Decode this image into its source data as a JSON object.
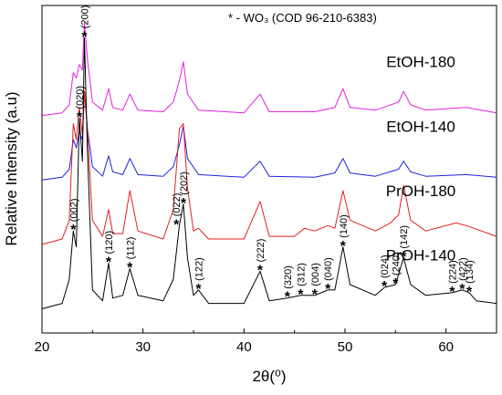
{
  "chart_data": {
    "type": "line",
    "title": "",
    "annotation": "* - WO₃ (COD 96-210-6383)",
    "xlabel": "2θ(⁰)",
    "ylabel": "Relative Intensity (a.u)",
    "xlim": [
      20,
      65
    ],
    "xticks": [
      20,
      30,
      40,
      50,
      60
    ],
    "y_tick_labels": "none",
    "grid": false,
    "legend": "none",
    "series": [
      {
        "name": "EtOH-180",
        "color": "#e020e0",
        "points": [
          [
            20,
            0.05
          ],
          [
            22.0,
            0.1
          ],
          [
            22.7,
            0.25
          ],
          [
            23.1,
            0.85
          ],
          [
            23.4,
            0.75
          ],
          [
            23.7,
            1.0
          ],
          [
            24.0,
            0.9
          ],
          [
            24.2,
            1.8
          ],
          [
            24.5,
            1.1
          ],
          [
            25.0,
            0.3
          ],
          [
            26.0,
            0.15
          ],
          [
            26.6,
            0.55
          ],
          [
            27.0,
            0.2
          ],
          [
            28.0,
            0.15
          ],
          [
            28.7,
            0.45
          ],
          [
            29.5,
            0.15
          ],
          [
            32.0,
            0.12
          ],
          [
            33.0,
            0.3
          ],
          [
            33.6,
            0.7
          ],
          [
            34.0,
            1.05
          ],
          [
            34.4,
            0.45
          ],
          [
            35.5,
            0.15
          ],
          [
            40.0,
            0.1
          ],
          [
            41.6,
            0.45
          ],
          [
            42.5,
            0.12
          ],
          [
            47.0,
            0.12
          ],
          [
            49.0,
            0.2
          ],
          [
            49.8,
            0.55
          ],
          [
            50.5,
            0.2
          ],
          [
            53.0,
            0.15
          ],
          [
            55.3,
            0.3
          ],
          [
            55.8,
            0.5
          ],
          [
            56.5,
            0.25
          ],
          [
            58.0,
            0.15
          ],
          [
            62.0,
            0.2
          ],
          [
            65,
            0.1
          ]
        ]
      },
      {
        "name": "EtOH-140",
        "color": "#2020e0",
        "points": [
          [
            20,
            0.05
          ],
          [
            22.0,
            0.1
          ],
          [
            22.7,
            0.25
          ],
          [
            23.1,
            0.8
          ],
          [
            23.4,
            0.65
          ],
          [
            23.7,
            0.95
          ],
          [
            24.0,
            0.8
          ],
          [
            24.2,
            1.7
          ],
          [
            24.5,
            1.0
          ],
          [
            25.0,
            0.3
          ],
          [
            26.0,
            0.12
          ],
          [
            26.6,
            0.5
          ],
          [
            27.0,
            0.2
          ],
          [
            28.0,
            0.15
          ],
          [
            28.7,
            0.45
          ],
          [
            29.5,
            0.15
          ],
          [
            32.0,
            0.12
          ],
          [
            33.0,
            0.3
          ],
          [
            33.6,
            0.7
          ],
          [
            34.0,
            1.05
          ],
          [
            34.4,
            0.45
          ],
          [
            35.5,
            0.15
          ],
          [
            40.0,
            0.1
          ],
          [
            41.6,
            0.4
          ],
          [
            42.5,
            0.12
          ],
          [
            47.0,
            0.1
          ],
          [
            49.0,
            0.18
          ],
          [
            49.8,
            0.45
          ],
          [
            50.5,
            0.18
          ],
          [
            53.0,
            0.12
          ],
          [
            55.3,
            0.25
          ],
          [
            55.8,
            0.4
          ],
          [
            56.5,
            0.2
          ],
          [
            58.0,
            0.12
          ],
          [
            62.0,
            0.15
          ],
          [
            65,
            0.1
          ]
        ]
      },
      {
        "name": "PrOH-180",
        "color": "#e02020",
        "points": [
          [
            20,
            0.05
          ],
          [
            22.0,
            0.15
          ],
          [
            22.7,
            0.5
          ],
          [
            23.1,
            2.3
          ],
          [
            23.4,
            2.0
          ],
          [
            23.7,
            2.6
          ],
          [
            24.0,
            2.1
          ],
          [
            24.2,
            2.9
          ],
          [
            24.5,
            2.2
          ],
          [
            25.0,
            0.5
          ],
          [
            26.0,
            0.2
          ],
          [
            26.6,
            0.7
          ],
          [
            27.0,
            0.25
          ],
          [
            28.0,
            0.25
          ],
          [
            28.7,
            1.05
          ],
          [
            29.5,
            0.3
          ],
          [
            32.0,
            0.15
          ],
          [
            33.0,
            0.7
          ],
          [
            33.6,
            2.2
          ],
          [
            34.0,
            2.3
          ],
          [
            34.4,
            1.1
          ],
          [
            35.0,
            0.3
          ],
          [
            35.5,
            0.35
          ],
          [
            36.5,
            0.15
          ],
          [
            40.0,
            0.15
          ],
          [
            41.6,
            0.85
          ],
          [
            42.5,
            0.2
          ],
          [
            45.0,
            0.2
          ],
          [
            46.0,
            0.35
          ],
          [
            47.0,
            0.3
          ],
          [
            48.3,
            0.4
          ],
          [
            49.0,
            0.35
          ],
          [
            49.8,
            1.05
          ],
          [
            50.5,
            0.5
          ],
          [
            53.0,
            0.3
          ],
          [
            54.5,
            0.45
          ],
          [
            55.3,
            0.6
          ],
          [
            55.8,
            1.15
          ],
          [
            56.5,
            0.5
          ],
          [
            58.0,
            0.3
          ],
          [
            61.0,
            0.45
          ],
          [
            62.0,
            0.4
          ],
          [
            65,
            0.2
          ]
        ]
      },
      {
        "name": "PrOH-140",
        "color": "#000000",
        "points": [
          [
            20,
            0.05
          ],
          [
            22.0,
            0.15
          ],
          [
            22.7,
            0.6
          ],
          [
            23.1,
            1.5
          ],
          [
            23.4,
            1.2
          ],
          [
            23.7,
            3.6
          ],
          [
            24.0,
            2.8
          ],
          [
            24.2,
            5.1
          ],
          [
            24.5,
            3.0
          ],
          [
            25.0,
            0.4
          ],
          [
            26.0,
            0.2
          ],
          [
            26.6,
            0.9
          ],
          [
            27.0,
            0.25
          ],
          [
            28.0,
            0.3
          ],
          [
            28.7,
            0.8
          ],
          [
            29.5,
            0.3
          ],
          [
            32.0,
            0.2
          ],
          [
            33.0,
            0.6
          ],
          [
            33.6,
            1.6
          ],
          [
            34.0,
            2.0
          ],
          [
            34.4,
            1.0
          ],
          [
            35.0,
            0.3
          ],
          [
            35.5,
            0.4
          ],
          [
            36.5,
            0.15
          ],
          [
            40.0,
            0.15
          ],
          [
            41.6,
            0.75
          ],
          [
            42.5,
            0.2
          ],
          [
            44.3,
            0.25
          ],
          [
            45.6,
            0.3
          ],
          [
            47.0,
            0.3
          ],
          [
            48.3,
            0.4
          ],
          [
            49.0,
            0.4
          ],
          [
            49.8,
            1.2
          ],
          [
            50.5,
            0.5
          ],
          [
            53.0,
            0.3
          ],
          [
            53.9,
            0.45
          ],
          [
            55.0,
            0.5
          ],
          [
            55.8,
            1.0
          ],
          [
            56.5,
            0.5
          ],
          [
            58.0,
            0.3
          ],
          [
            60.6,
            0.35
          ],
          [
            61.6,
            0.4
          ],
          [
            62.3,
            0.35
          ],
          [
            63.0,
            0.2
          ],
          [
            65,
            0.15
          ]
        ]
      }
    ],
    "series_offsets": [
      3.6,
      2.4,
      1.2,
      0
    ],
    "peak_labels": [
      {
        "label": "(002)",
        "x": 23.1,
        "y": 1.5
      },
      {
        "label": "(020)",
        "x": 23.7,
        "y": 3.6
      },
      {
        "label": "(200)",
        "x": 24.2,
        "y": 5.1
      },
      {
        "label": "(120)",
        "x": 26.6,
        "y": 0.9
      },
      {
        "label": "(112)",
        "x": 28.7,
        "y": 0.8
      },
      {
        "label": "(022)",
        "x": 33.3,
        "y": 1.6
      },
      {
        "label": "(202)",
        "x": 34.0,
        "y": 2.0
      },
      {
        "label": "(122)",
        "x": 35.5,
        "y": 0.4
      },
      {
        "label": "(222)",
        "x": 41.6,
        "y": 0.75
      },
      {
        "label": "(320)",
        "x": 44.3,
        "y": 0.25
      },
      {
        "label": "(312)",
        "x": 45.6,
        "y": 0.3
      },
      {
        "label": "(004)",
        "x": 47.0,
        "y": 0.3
      },
      {
        "label": "(040)",
        "x": 48.3,
        "y": 0.4
      },
      {
        "label": "(140)",
        "x": 49.8,
        "y": 1.2
      },
      {
        "label": "(024)",
        "x": 53.9,
        "y": 0.45
      },
      {
        "label": "(240)",
        "x": 55.0,
        "y": 0.5
      },
      {
        "label": "(142)",
        "x": 55.8,
        "y": 1.0
      },
      {
        "label": "(224)",
        "x": 60.6,
        "y": 0.35
      },
      {
        "label": "(422)",
        "x": 61.6,
        "y": 0.4
      },
      {
        "label": "(134)",
        "x": 62.3,
        "y": 0.35
      }
    ]
  }
}
